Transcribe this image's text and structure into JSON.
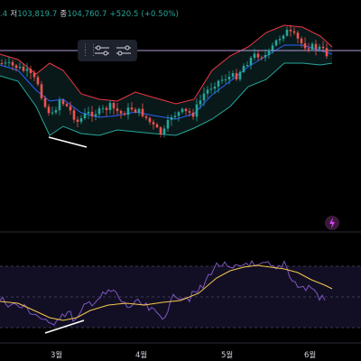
{
  "ohlc": {
    "prefix": ".4",
    "low_label": "저",
    "low_value": "103,819.7",
    "close_label": "종",
    "close_value": "104,760.7",
    "change": "+520.5 (+0.50%)"
  },
  "toolbar": {
    "settings_icon": "sliders-icon",
    "compare_icon": "sliders-alt-icon"
  },
  "time_axis": [
    "3월",
    "4월",
    "5월",
    "6월"
  ],
  "colors": {
    "up": "#26a69a",
    "down": "#ef5350",
    "bb_upper": "#f23645",
    "bb_lower": "#26a69a",
    "bb_basis": "#2962ff",
    "rsi": "#7e57c2",
    "rsi_ma": "#f5c84c",
    "price_line": "#b39ddb",
    "trendline": "#ffffff"
  }
}
